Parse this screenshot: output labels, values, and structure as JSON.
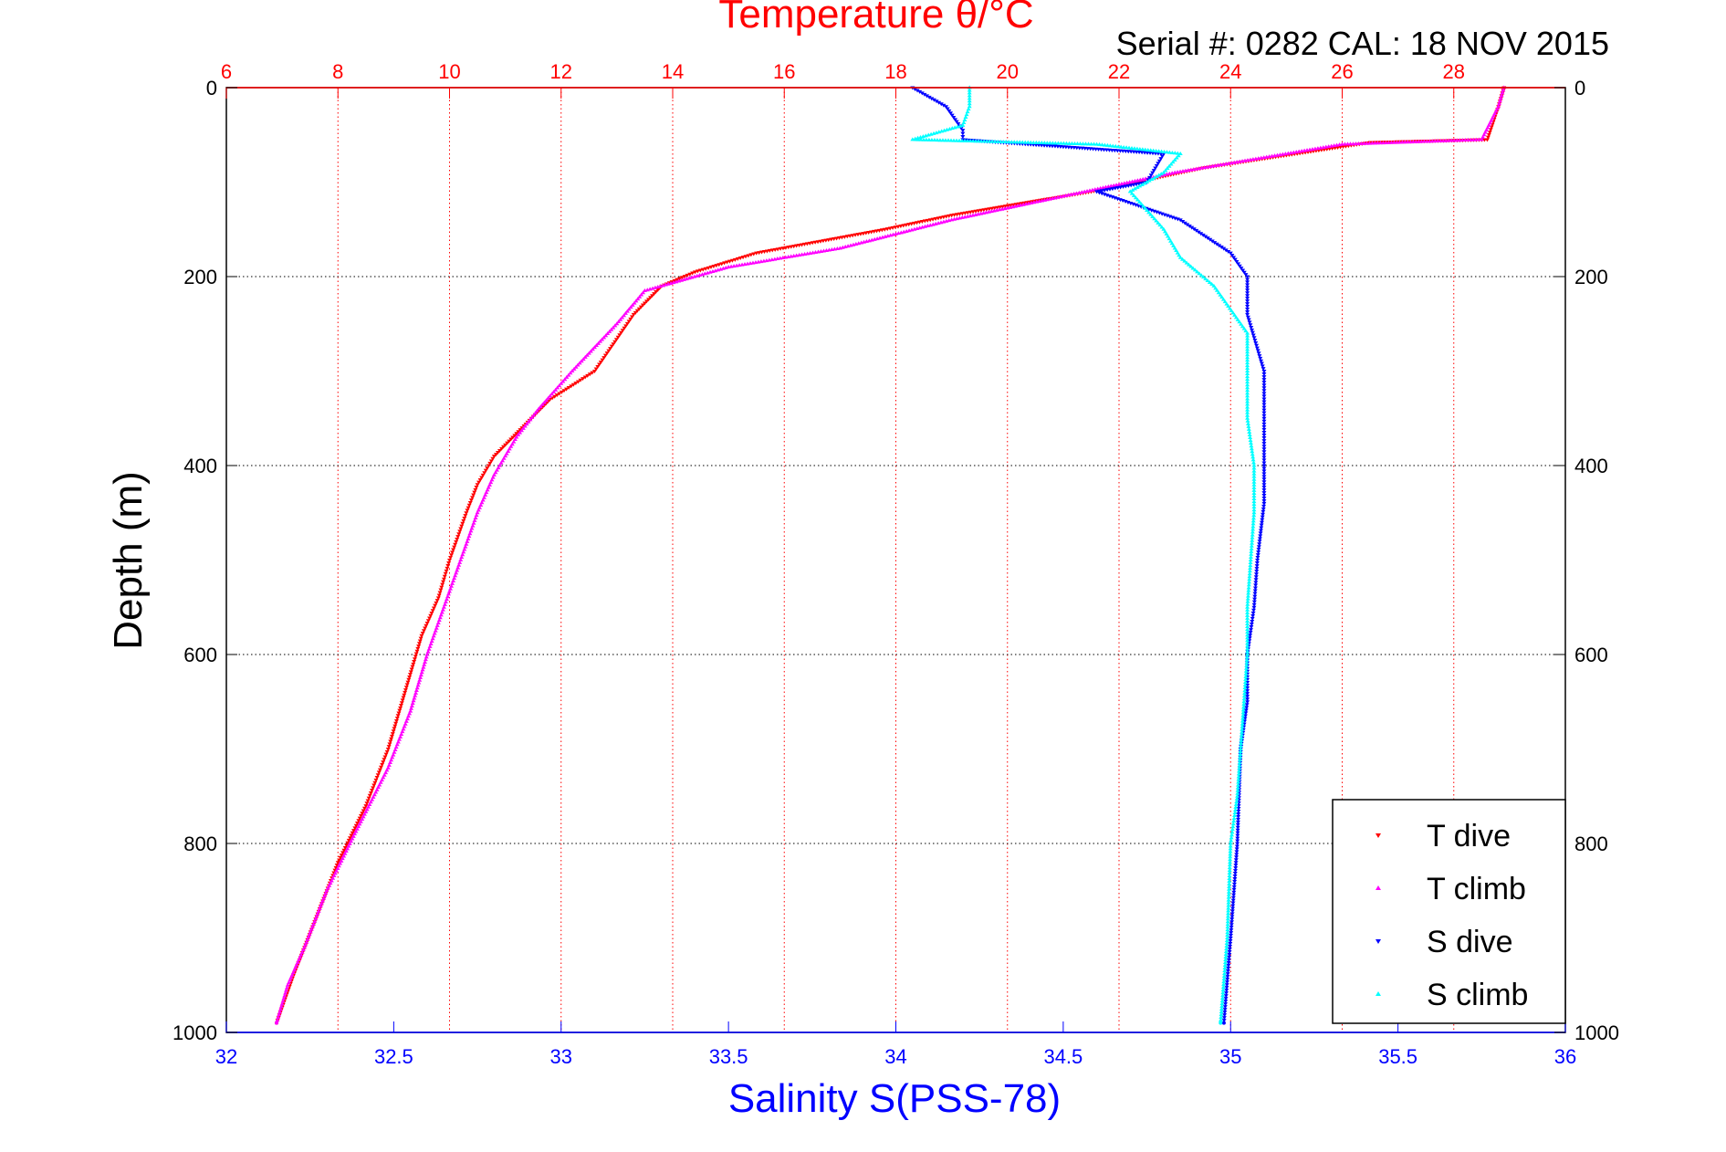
{
  "chart_data": {
    "type": "scatter",
    "title": "Temperature θ/°C",
    "subtitle": "Serial #: 0282  CAL: 18 NOV 2015",
    "xlabel": "Salinity S(PSS-78)",
    "ylabel": "Depth (m)",
    "xlim_salinity": [
      32,
      36
    ],
    "xlim_temperature": [
      6,
      30
    ],
    "ylim_depth": [
      0,
      1000
    ],
    "y_reversed": true,
    "grid": true,
    "legend_position": "bottom-right",
    "colors": {
      "top_axis": "#ff0000",
      "bottom_axis": "#0000ff",
      "grid_x": "#ff0000",
      "grid_y": "#000000"
    },
    "top_ticks": [
      "6",
      "8",
      "10",
      "12",
      "14",
      "16",
      "18",
      "20",
      "22",
      "24",
      "26",
      "28"
    ],
    "bottom_ticks": [
      "32",
      "32.5",
      "33",
      "33.5",
      "34",
      "34.5",
      "35",
      "35.5",
      "36"
    ],
    "left_ticks": [
      "0",
      "200",
      "400",
      "600",
      "800",
      "1000"
    ],
    "right_ticks": [
      "0",
      "200",
      "400",
      "600",
      "800",
      "1000"
    ],
    "series": [
      {
        "name": "T dive",
        "axis": "temperature",
        "color": "#ff0000",
        "marker": "triangle-down",
        "points": [
          [
            28.9,
            0
          ],
          [
            28.8,
            20
          ],
          [
            28.6,
            55
          ],
          [
            26.5,
            58
          ],
          [
            23.5,
            85
          ],
          [
            21.5,
            110
          ],
          [
            19.0,
            135
          ],
          [
            17.8,
            150
          ],
          [
            15.5,
            175
          ],
          [
            14.4,
            195
          ],
          [
            13.8,
            210
          ],
          [
            13.3,
            240
          ],
          [
            12.6,
            300
          ],
          [
            11.8,
            330
          ],
          [
            11.3,
            360
          ],
          [
            10.8,
            390
          ],
          [
            10.5,
            420
          ],
          [
            10.3,
            450
          ],
          [
            10.0,
            500
          ],
          [
            9.8,
            540
          ],
          [
            9.5,
            580
          ],
          [
            9.2,
            640
          ],
          [
            8.9,
            700
          ],
          [
            8.5,
            760
          ],
          [
            8.0,
            820
          ],
          [
            7.6,
            880
          ],
          [
            7.2,
            940
          ],
          [
            6.9,
            990
          ]
        ]
      },
      {
        "name": "T climb",
        "axis": "temperature",
        "color": "#ff00ff",
        "marker": "triangle-up",
        "points": [
          [
            28.9,
            0
          ],
          [
            28.8,
            20
          ],
          [
            28.5,
            55
          ],
          [
            26.0,
            60
          ],
          [
            23.0,
            90
          ],
          [
            21.0,
            115
          ],
          [
            19.0,
            140
          ],
          [
            17.0,
            170
          ],
          [
            15.0,
            190
          ],
          [
            13.5,
            215
          ],
          [
            13.0,
            250
          ],
          [
            12.2,
            300
          ],
          [
            11.6,
            340
          ],
          [
            11.2,
            370
          ],
          [
            10.8,
            410
          ],
          [
            10.5,
            450
          ],
          [
            10.2,
            500
          ],
          [
            9.9,
            550
          ],
          [
            9.6,
            600
          ],
          [
            9.3,
            660
          ],
          [
            8.9,
            720
          ],
          [
            8.3,
            790
          ],
          [
            7.8,
            850
          ],
          [
            7.4,
            910
          ],
          [
            7.1,
            950
          ],
          [
            6.9,
            990
          ]
        ]
      },
      {
        "name": "S dive",
        "axis": "salinity",
        "color": "#0000ff",
        "marker": "triangle-down",
        "points": [
          [
            34.05,
            0
          ],
          [
            34.15,
            20
          ],
          [
            34.2,
            45
          ],
          [
            34.2,
            55
          ],
          [
            34.8,
            70
          ],
          [
            34.75,
            100
          ],
          [
            34.6,
            110
          ],
          [
            34.85,
            140
          ],
          [
            35.0,
            175
          ],
          [
            35.05,
            200
          ],
          [
            35.05,
            240
          ],
          [
            35.1,
            300
          ],
          [
            35.1,
            350
          ],
          [
            35.1,
            400
          ],
          [
            35.1,
            440
          ],
          [
            35.08,
            500
          ],
          [
            35.07,
            550
          ],
          [
            35.05,
            600
          ],
          [
            35.05,
            650
          ],
          [
            35.03,
            700
          ],
          [
            35.02,
            800
          ],
          [
            35.0,
            900
          ],
          [
            34.98,
            990
          ]
        ]
      },
      {
        "name": "S climb",
        "axis": "salinity",
        "color": "#00ffff",
        "marker": "triangle-up",
        "points": [
          [
            34.22,
            0
          ],
          [
            34.22,
            20
          ],
          [
            34.2,
            40
          ],
          [
            34.05,
            55
          ],
          [
            34.6,
            60
          ],
          [
            34.85,
            70
          ],
          [
            34.8,
            90
          ],
          [
            34.7,
            110
          ],
          [
            34.8,
            150
          ],
          [
            34.85,
            180
          ],
          [
            34.95,
            210
          ],
          [
            35.05,
            260
          ],
          [
            35.05,
            300
          ],
          [
            35.05,
            350
          ],
          [
            35.07,
            400
          ],
          [
            35.07,
            450
          ],
          [
            35.06,
            500
          ],
          [
            35.05,
            550
          ],
          [
            35.05,
            600
          ],
          [
            35.04,
            650
          ],
          [
            35.03,
            700
          ],
          [
            35.02,
            750
          ],
          [
            35.0,
            800
          ],
          [
            34.99,
            900
          ],
          [
            34.97,
            990
          ]
        ]
      }
    ]
  }
}
